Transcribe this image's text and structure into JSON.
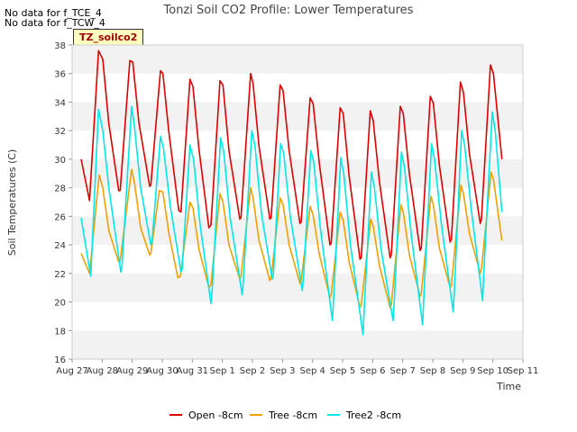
{
  "header": {
    "nodata_lines": [
      "No data for f_TCE_4",
      "No data for f_TCW_4"
    ],
    "badge": "TZ_soilco2"
  },
  "chart_data": {
    "type": "line",
    "title": "Tonzi Soil CO2 Profile: Lower Temperatures",
    "xlabel": "Time",
    "ylabel": "Soil Temperatures (C)",
    "ylim": [
      16,
      38
    ],
    "xlim": [
      0,
      15
    ],
    "yticks": [
      16,
      18,
      20,
      22,
      24,
      26,
      28,
      30,
      32,
      34,
      36,
      38
    ],
    "xticks": [
      {
        "v": 0,
        "label": "Aug 27"
      },
      {
        "v": 1,
        "label": "Aug 28"
      },
      {
        "v": 2,
        "label": "Aug 29"
      },
      {
        "v": 3,
        "label": "Aug 30"
      },
      {
        "v": 4,
        "label": "Aug 31"
      },
      {
        "v": 5,
        "label": "Sep 1"
      },
      {
        "v": 6,
        "label": "Sep 2"
      },
      {
        "v": 7,
        "label": "Sep 3"
      },
      {
        "v": 8,
        "label": "Sep 4"
      },
      {
        "v": 9,
        "label": "Sep 5"
      },
      {
        "v": 10,
        "label": "Sep 6"
      },
      {
        "v": 11,
        "label": "Sep 7"
      },
      {
        "v": 12,
        "label": "Sep 8"
      },
      {
        "v": 13,
        "label": "Sep 9"
      },
      {
        "v": 14,
        "label": "Sep 10"
      },
      {
        "v": 15,
        "label": "Sep 11"
      }
    ],
    "grid": "horizontal bands",
    "legend_position": "bottom",
    "series": [
      {
        "name": "Open -8cm",
        "color": "#dd0000",
        "points": [
          [
            0.3,
            30.0
          ],
          [
            0.58,
            27.1
          ],
          [
            0.88,
            37.6
          ],
          [
            1.02,
            37.0
          ],
          [
            1.22,
            32.5
          ],
          [
            1.55,
            27.8
          ],
          [
            1.6,
            27.8
          ],
          [
            1.92,
            36.9
          ],
          [
            2.02,
            36.8
          ],
          [
            2.22,
            32.6
          ],
          [
            2.58,
            28.1
          ],
          [
            2.62,
            28.2
          ],
          [
            2.94,
            36.2
          ],
          [
            3.02,
            36.0
          ],
          [
            3.22,
            31.9
          ],
          [
            3.55,
            26.4
          ],
          [
            3.62,
            26.3
          ],
          [
            3.92,
            35.6
          ],
          [
            4.02,
            35.1
          ],
          [
            4.22,
            30.7
          ],
          [
            4.55,
            25.2
          ],
          [
            4.62,
            25.4
          ],
          [
            4.92,
            35.5
          ],
          [
            5.02,
            35.2
          ],
          [
            5.22,
            30.6
          ],
          [
            5.58,
            25.8
          ],
          [
            5.62,
            25.9
          ],
          [
            5.94,
            36.0
          ],
          [
            6.02,
            35.3
          ],
          [
            6.22,
            30.9
          ],
          [
            6.58,
            25.8
          ],
          [
            6.62,
            25.9
          ],
          [
            6.92,
            35.2
          ],
          [
            7.02,
            34.8
          ],
          [
            7.22,
            30.6
          ],
          [
            7.58,
            25.5
          ],
          [
            7.62,
            25.6
          ],
          [
            7.92,
            34.3
          ],
          [
            8.02,
            33.9
          ],
          [
            8.22,
            29.8
          ],
          [
            8.58,
            24.0
          ],
          [
            8.62,
            24.1
          ],
          [
            8.92,
            33.6
          ],
          [
            9.02,
            33.2
          ],
          [
            9.22,
            28.8
          ],
          [
            9.58,
            23.0
          ],
          [
            9.62,
            23.1
          ],
          [
            9.92,
            33.4
          ],
          [
            10.02,
            32.7
          ],
          [
            10.22,
            28.5
          ],
          [
            10.58,
            23.1
          ],
          [
            10.62,
            23.3
          ],
          [
            10.92,
            33.7
          ],
          [
            11.02,
            33.2
          ],
          [
            11.22,
            29.0
          ],
          [
            11.58,
            23.6
          ],
          [
            11.62,
            23.8
          ],
          [
            11.92,
            34.4
          ],
          [
            12.02,
            33.9
          ],
          [
            12.22,
            29.6
          ],
          [
            12.58,
            24.2
          ],
          [
            12.62,
            24.4
          ],
          [
            12.92,
            35.4
          ],
          [
            13.02,
            34.7
          ],
          [
            13.22,
            30.4
          ],
          [
            13.58,
            25.5
          ],
          [
            13.62,
            25.8
          ],
          [
            13.92,
            36.6
          ],
          [
            14.02,
            36.0
          ],
          [
            14.3,
            30.0
          ]
        ]
      },
      {
        "name": "Tree -8cm",
        "color": "#f0a000",
        "points": [
          [
            0.3,
            23.4
          ],
          [
            0.58,
            22.0
          ],
          [
            0.9,
            28.9
          ],
          [
            1.02,
            28.0
          ],
          [
            1.22,
            25.0
          ],
          [
            1.55,
            22.8
          ],
          [
            1.6,
            22.9
          ],
          [
            1.98,
            29.3
          ],
          [
            2.08,
            28.3
          ],
          [
            2.28,
            25.2
          ],
          [
            2.58,
            23.3
          ],
          [
            2.62,
            23.4
          ],
          [
            2.9,
            27.8
          ],
          [
            3.02,
            27.7
          ],
          [
            3.22,
            24.8
          ],
          [
            3.52,
            21.7
          ],
          [
            3.6,
            21.8
          ],
          [
            3.92,
            27.0
          ],
          [
            4.02,
            26.6
          ],
          [
            4.22,
            23.7
          ],
          [
            4.55,
            21.0
          ],
          [
            4.62,
            21.2
          ],
          [
            4.92,
            27.6
          ],
          [
            5.02,
            27.0
          ],
          [
            5.22,
            24.0
          ],
          [
            5.58,
            21.6
          ],
          [
            5.62,
            21.8
          ],
          [
            5.94,
            28.0
          ],
          [
            6.02,
            27.3
          ],
          [
            6.22,
            24.3
          ],
          [
            6.58,
            21.5
          ],
          [
            6.62,
            21.7
          ],
          [
            6.92,
            27.3
          ],
          [
            7.02,
            26.8
          ],
          [
            7.22,
            24.0
          ],
          [
            7.58,
            21.3
          ],
          [
            7.62,
            21.5
          ],
          [
            7.92,
            26.7
          ],
          [
            8.02,
            26.1
          ],
          [
            8.22,
            23.4
          ],
          [
            8.58,
            20.3
          ],
          [
            8.62,
            20.5
          ],
          [
            8.92,
            26.3
          ],
          [
            9.02,
            25.7
          ],
          [
            9.22,
            22.8
          ],
          [
            9.58,
            19.6
          ],
          [
            9.62,
            19.8
          ],
          [
            9.94,
            25.8
          ],
          [
            10.02,
            25.3
          ],
          [
            10.22,
            22.6
          ],
          [
            10.58,
            19.6
          ],
          [
            10.62,
            19.8
          ],
          [
            10.94,
            26.8
          ],
          [
            11.02,
            26.3
          ],
          [
            11.22,
            23.3
          ],
          [
            11.58,
            20.4
          ],
          [
            11.62,
            20.6
          ],
          [
            11.94,
            27.4
          ],
          [
            12.02,
            26.8
          ],
          [
            12.22,
            23.8
          ],
          [
            12.58,
            21.0
          ],
          [
            12.62,
            21.2
          ],
          [
            12.94,
            28.2
          ],
          [
            13.02,
            27.6
          ],
          [
            13.22,
            24.8
          ],
          [
            13.58,
            22.0
          ],
          [
            13.62,
            22.3
          ],
          [
            13.94,
            29.1
          ],
          [
            14.02,
            28.6
          ],
          [
            14.3,
            24.3
          ]
        ]
      },
      {
        "name": "Tree2 -8cm",
        "color": "#00e8e8",
        "points": [
          [
            0.3,
            25.9
          ],
          [
            0.62,
            21.8
          ],
          [
            0.88,
            33.5
          ],
          [
            1.02,
            32.0
          ],
          [
            1.22,
            28.0
          ],
          [
            1.62,
            22.1
          ],
          [
            1.66,
            22.5
          ],
          [
            1.98,
            33.7
          ],
          [
            2.08,
            32.2
          ],
          [
            2.28,
            28.0
          ],
          [
            2.62,
            24.0
          ],
          [
            2.66,
            24.3
          ],
          [
            2.94,
            31.6
          ],
          [
            3.04,
            30.8
          ],
          [
            3.26,
            26.8
          ],
          [
            3.62,
            22.1
          ],
          [
            3.66,
            22.3
          ],
          [
            3.92,
            31.0
          ],
          [
            4.04,
            30.0
          ],
          [
            4.26,
            25.4
          ],
          [
            4.62,
            19.9
          ],
          [
            4.66,
            20.8
          ],
          [
            4.94,
            31.5
          ],
          [
            5.04,
            30.6
          ],
          [
            5.26,
            25.9
          ],
          [
            5.66,
            20.5
          ],
          [
            5.7,
            21.5
          ],
          [
            5.98,
            32.0
          ],
          [
            6.08,
            31.0
          ],
          [
            6.3,
            26.2
          ],
          [
            6.66,
            21.6
          ],
          [
            6.7,
            22.0
          ],
          [
            6.94,
            31.1
          ],
          [
            7.04,
            30.4
          ],
          [
            7.26,
            26.0
          ],
          [
            7.66,
            20.8
          ],
          [
            7.7,
            21.8
          ],
          [
            7.94,
            30.6
          ],
          [
            8.04,
            29.8
          ],
          [
            8.26,
            25.2
          ],
          [
            8.66,
            18.7
          ],
          [
            8.7,
            20.2
          ],
          [
            8.94,
            30.1
          ],
          [
            9.04,
            29.0
          ],
          [
            9.26,
            24.0
          ],
          [
            9.68,
            17.7
          ],
          [
            9.72,
            19.5
          ],
          [
            9.96,
            29.1
          ],
          [
            10.06,
            28.0
          ],
          [
            10.28,
            23.7
          ],
          [
            10.68,
            18.7
          ],
          [
            10.72,
            20.0
          ],
          [
            10.96,
            30.5
          ],
          [
            11.06,
            29.4
          ],
          [
            11.28,
            24.8
          ],
          [
            11.66,
            18.4
          ],
          [
            11.7,
            20.2
          ],
          [
            11.96,
            31.1
          ],
          [
            12.06,
            30.0
          ],
          [
            12.28,
            25.6
          ],
          [
            12.68,
            19.3
          ],
          [
            12.72,
            20.8
          ],
          [
            12.96,
            32.0
          ],
          [
            13.06,
            31.0
          ],
          [
            13.28,
            26.5
          ],
          [
            13.66,
            20.1
          ],
          [
            13.7,
            22.2
          ],
          [
            13.98,
            33.3
          ],
          [
            14.08,
            32.0
          ],
          [
            14.3,
            26.3
          ]
        ]
      }
    ]
  }
}
